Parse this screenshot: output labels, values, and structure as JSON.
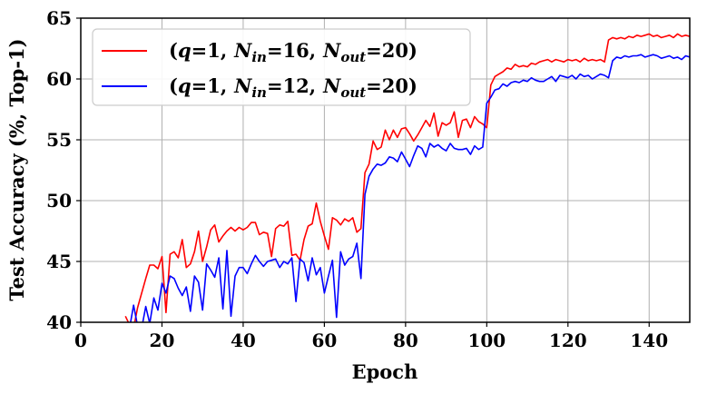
{
  "chart_data": {
    "type": "line",
    "xlabel": "Epoch",
    "ylabel": "Test Accuracy (%, Top-1)",
    "xlim": [
      0,
      150
    ],
    "ylim": [
      40,
      65
    ],
    "xticks": [
      0,
      20,
      40,
      60,
      80,
      100,
      120,
      140
    ],
    "yticks": [
      40,
      45,
      50,
      55,
      60,
      65
    ],
    "grid": true,
    "legend_position": "top-left",
    "series": [
      {
        "name": "(q=1, N_in=16, N_out=20)",
        "legend": {
          "open": "(",
          "q": "q",
          "eq1": "=1,",
          "N1": "N",
          "sub1": "in",
          "v1": "=16,",
          "N2": "N",
          "sub2": "out",
          "v2": "=20)"
        },
        "color": "#ff0000",
        "x": [
          11,
          12,
          13,
          14,
          15,
          16,
          17,
          18,
          19,
          20,
          21,
          22,
          23,
          24,
          25,
          26,
          27,
          28,
          29,
          30,
          31,
          32,
          33,
          34,
          35,
          36,
          37,
          38,
          39,
          40,
          41,
          42,
          43,
          44,
          45,
          46,
          47,
          48,
          49,
          50,
          51,
          52,
          53,
          54,
          55,
          56,
          57,
          58,
          59,
          60,
          61,
          62,
          63,
          64,
          65,
          66,
          67,
          68,
          69,
          70,
          71,
          72,
          73,
          74,
          75,
          76,
          77,
          78,
          79,
          80,
          81,
          82,
          83,
          84,
          85,
          86,
          87,
          88,
          89,
          90,
          91,
          92,
          93,
          94,
          95,
          96,
          97,
          98,
          99,
          100,
          101,
          102,
          103,
          104,
          105,
          106,
          107,
          108,
          109,
          110,
          111,
          112,
          113,
          114,
          115,
          116,
          117,
          118,
          119,
          120,
          121,
          122,
          123,
          124,
          125,
          126,
          127,
          128,
          129,
          130,
          131,
          132,
          133,
          134,
          135,
          136,
          137,
          138,
          139,
          140,
          141,
          142,
          143,
          144,
          145,
          146,
          147,
          148,
          149,
          150
        ],
        "y": [
          40.5,
          39.8,
          39.5,
          41.2,
          42.4,
          43.6,
          44.7,
          44.7,
          44.4,
          45.4,
          40.8,
          45.6,
          45.8,
          45.3,
          46.8,
          44.5,
          44.8,
          45.8,
          47.5,
          45.0,
          46.2,
          47.6,
          48.0,
          46.6,
          47.1,
          47.5,
          47.8,
          47.5,
          47.8,
          47.6,
          47.8,
          48.2,
          48.2,
          47.2,
          47.4,
          47.3,
          45.4,
          47.7,
          48.0,
          47.9,
          48.3,
          45.5,
          45.6,
          45.1,
          46.8,
          47.9,
          48.1,
          49.8,
          48.3,
          47.1,
          46.0,
          48.6,
          48.4,
          48.0,
          48.5,
          48.3,
          48.6,
          47.4,
          47.7,
          52.3,
          53.0,
          54.9,
          54.2,
          54.4,
          55.8,
          55.0,
          55.8,
          55.2,
          55.9,
          56.0,
          55.5,
          54.9,
          55.4,
          56.0,
          56.6,
          56.1,
          57.2,
          55.3,
          56.4,
          56.2,
          56.4,
          57.3,
          55.2,
          56.6,
          56.7,
          56.0,
          56.9,
          56.5,
          56.3,
          56.0,
          59.5,
          60.2,
          60.4,
          60.6,
          60.9,
          60.8,
          61.2,
          61.0,
          61.1,
          61.0,
          61.3,
          61.2,
          61.4,
          61.5,
          61.6,
          61.4,
          61.6,
          61.5,
          61.4,
          61.6,
          61.5,
          61.6,
          61.4,
          61.7,
          61.5,
          61.6,
          61.5,
          61.6,
          61.4,
          63.2,
          63.4,
          63.3,
          63.4,
          63.3,
          63.5,
          63.4,
          63.6,
          63.5,
          63.6,
          63.7,
          63.5,
          63.6,
          63.4,
          63.5,
          63.6,
          63.4,
          63.7,
          63.5,
          63.6,
          63.5
        ]
      },
      {
        "name": "(q=1, N_in=12, N_out=20)",
        "legend": {
          "open": "(",
          "q": "q",
          "eq1": "=1,",
          "N1": "N",
          "sub1": "in",
          "v1": "=12,",
          "N2": "N",
          "sub2": "out",
          "v2": "=20)"
        },
        "color": "#0000ff",
        "x": [
          12,
          13,
          14,
          15,
          16,
          17,
          18,
          19,
          20,
          21,
          22,
          23,
          24,
          25,
          26,
          27,
          28,
          29,
          30,
          31,
          32,
          33,
          34,
          35,
          36,
          37,
          38,
          39,
          40,
          41,
          42,
          43,
          44,
          45,
          46,
          47,
          48,
          49,
          50,
          51,
          52,
          53,
          54,
          55,
          56,
          57,
          58,
          59,
          60,
          61,
          62,
          63,
          64,
          65,
          66,
          67,
          68,
          69,
          70,
          71,
          72,
          73,
          74,
          75,
          76,
          77,
          78,
          79,
          80,
          81,
          82,
          83,
          84,
          85,
          86,
          87,
          88,
          89,
          90,
          91,
          92,
          93,
          94,
          95,
          96,
          97,
          98,
          99,
          100,
          101,
          102,
          103,
          104,
          105,
          106,
          107,
          108,
          109,
          110,
          111,
          112,
          113,
          114,
          115,
          116,
          117,
          118,
          119,
          120,
          121,
          122,
          123,
          124,
          125,
          126,
          127,
          128,
          129,
          130,
          131,
          132,
          133,
          134,
          135,
          136,
          137,
          138,
          139,
          140,
          141,
          142,
          143,
          144,
          145,
          146,
          147,
          148,
          149,
          150
        ],
        "y": [
          39.5,
          41.4,
          39.7,
          39.5,
          41.3,
          39.9,
          42.0,
          41.0,
          43.2,
          42.4,
          43.8,
          43.6,
          42.8,
          42.2,
          42.9,
          40.9,
          43.8,
          43.3,
          41.0,
          44.8,
          44.3,
          43.7,
          45.3,
          41.1,
          45.9,
          40.5,
          43.8,
          44.5,
          44.5,
          44.0,
          44.8,
          45.5,
          45.0,
          44.6,
          45.0,
          45.1,
          45.2,
          44.5,
          45.0,
          44.8,
          45.3,
          41.7,
          45.2,
          44.9,
          43.4,
          45.3,
          43.9,
          44.5,
          42.4,
          43.8,
          45.1,
          40.4,
          45.8,
          44.7,
          45.2,
          45.4,
          46.5,
          43.6,
          50.5,
          52.0,
          52.6,
          53.0,
          52.9,
          53.1,
          53.6,
          53.5,
          53.2,
          54.0,
          53.4,
          52.8,
          53.7,
          54.5,
          54.3,
          53.6,
          54.7,
          54.4,
          54.6,
          54.3,
          54.1,
          54.7,
          54.3,
          54.2,
          54.2,
          54.3,
          53.8,
          54.5,
          54.2,
          54.4,
          58.0,
          58.5,
          59.1,
          59.2,
          59.6,
          59.4,
          59.7,
          59.8,
          59.7,
          59.9,
          59.8,
          60.1,
          59.9,
          59.8,
          59.8,
          60.0,
          60.2,
          59.8,
          60.3,
          60.2,
          60.1,
          60.3,
          60.0,
          60.4,
          60.2,
          60.3,
          60.0,
          60.2,
          60.4,
          60.3,
          60.1,
          61.5,
          61.8,
          61.7,
          61.9,
          61.8,
          61.9,
          61.9,
          62.0,
          61.8,
          61.9,
          62.0,
          61.9,
          61.7,
          61.8,
          61.9,
          61.7,
          61.8,
          61.6,
          61.9,
          61.8
        ]
      }
    ]
  }
}
